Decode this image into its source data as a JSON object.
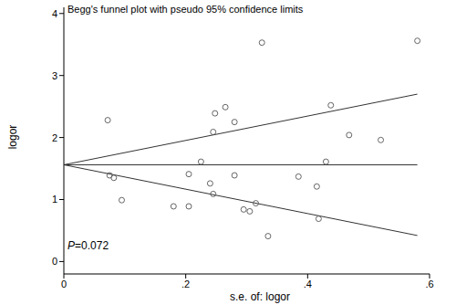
{
  "chart_data": {
    "type": "scatter",
    "title": "Begg's funnel plot with pseudo 95% confidence limits",
    "x_label": "s.e. of: logor",
    "y_label": "logor",
    "annotation": "P=0.072",
    "x": [
      0.072,
      0.075,
      0.082,
      0.095,
      0.18,
      0.205,
      0.205,
      0.225,
      0.24,
      0.245,
      0.245,
      0.248,
      0.265,
      0.28,
      0.28,
      0.295,
      0.305,
      0.315,
      0.325,
      0.335,
      0.385,
      0.415,
      0.418,
      0.43,
      0.438,
      0.468,
      0.52,
      0.58
    ],
    "values": [
      2.28,
      1.39,
      1.35,
      0.99,
      0.89,
      0.89,
      1.41,
      1.61,
      1.26,
      1.09,
      2.09,
      2.39,
      2.49,
      2.25,
      1.39,
      0.84,
      0.81,
      0.94,
      3.53,
      0.41,
      1.37,
      1.21,
      0.69,
      1.61,
      2.52,
      2.04,
      1.96,
      3.56
    ],
    "marker": "hollow_circle",
    "color": "#555555",
    "funnel_lines": [
      {
        "x": [
          0,
          0.58
        ],
        "values": [
          1.56,
          1.56
        ]
      },
      {
        "x": [
          0,
          0.58
        ],
        "values": [
          1.56,
          2.7
        ]
      },
      {
        "x": [
          0,
          0.58
        ],
        "values": [
          1.56,
          0.42
        ]
      }
    ],
    "line_color": "#333333",
    "xlim": [
      0,
      0.6
    ],
    "xticks": [
      0,
      {
        "value": 0.2,
        "label": ".2"
      },
      {
        "value": 0.4,
        "label": ".4"
      },
      {
        "value": 0.6,
        "label": ".6"
      }
    ],
    "ylim": [
      -0.2,
      4.1
    ],
    "yticks": [
      0,
      1,
      2,
      3,
      4
    ],
    "grid": false
  }
}
